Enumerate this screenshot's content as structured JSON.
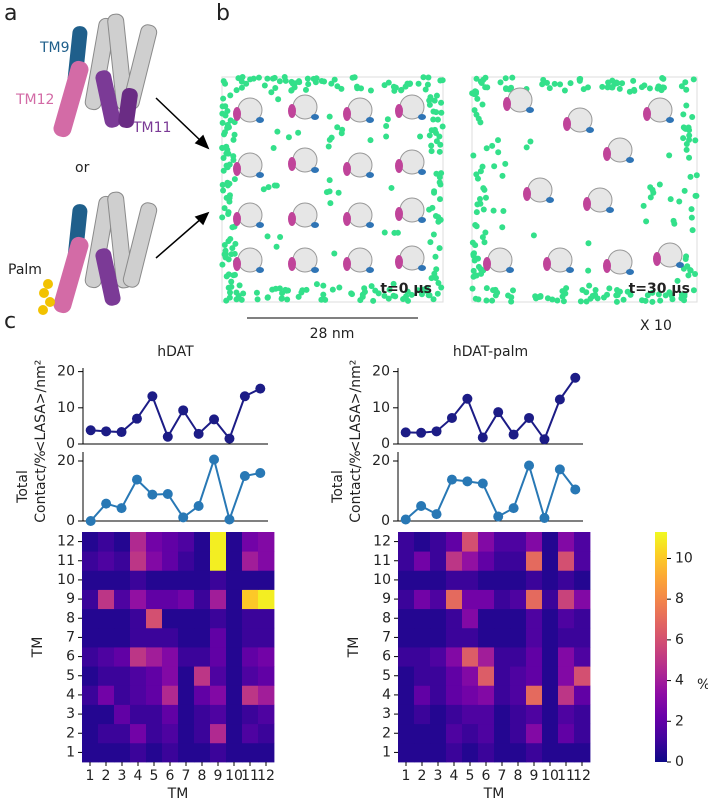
{
  "figure": {
    "panel_labels": [
      "a",
      "b",
      "c"
    ],
    "structure_labels": {
      "tm9": "TM9",
      "tm12": "TM12",
      "tm11": "TM11",
      "or": "or",
      "palm": "Palm"
    },
    "snapshots": {
      "start": "t=0 μs",
      "end": "t=30 μs",
      "scale": "28 nm",
      "magnification": "X 10"
    }
  },
  "chart_data": [
    {
      "type": "line",
      "title": "hDAT",
      "ylabel": "<LASA>/nm²",
      "x": [
        1,
        2,
        3,
        4,
        5,
        6,
        7,
        8,
        9,
        10,
        11,
        12
      ],
      "xlim": [
        0.5,
        12.5
      ],
      "series": [
        {
          "color": "#1c1c86",
          "values": [
            3.8,
            3.5,
            3.3,
            7,
            13.2,
            2,
            9.3,
            2.8,
            6.8,
            1.5,
            13.2,
            15.3
          ]
        }
      ],
      "ylim": [
        0,
        21
      ],
      "yticks": [
        0,
        10,
        20
      ]
    },
    {
      "type": "line",
      "ylabel": [
        "Total",
        "Contact/%"
      ],
      "x": [
        1,
        2,
        3,
        4,
        5,
        6,
        7,
        8,
        9,
        10,
        11,
        12
      ],
      "xlim": [
        0.5,
        12.5
      ],
      "series": [
        {
          "color": "#2878b5",
          "values": [
            0,
            5.8,
            4.3,
            13.8,
            8.8,
            9,
            1.2,
            5,
            20.5,
            0.5,
            15,
            16
          ]
        }
      ],
      "ylim": [
        0,
        23
      ],
      "yticks": [
        0,
        20
      ]
    },
    {
      "type": "heatmap",
      "xlabel": "TM",
      "ylabel": "TM",
      "colormap": "plasma",
      "zlim": [
        0,
        11.3
      ],
      "x": [
        "1",
        "2",
        "3",
        "4",
        "5",
        "6",
        "7",
        "8",
        "9",
        "10",
        "11",
        "12"
      ],
      "y": [
        "1",
        "2",
        "3",
        "4",
        "5",
        "6",
        "7",
        "8",
        "9",
        "10",
        "11",
        "12"
      ],
      "z": [
        [
          0.5,
          0.5,
          0.5,
          1,
          0.5,
          1,
          0.5,
          0.5,
          1,
          0.5,
          0.5,
          0.5
        ],
        [
          0.5,
          1,
          1,
          2.5,
          1,
          1.5,
          0.5,
          1,
          4.5,
          0.5,
          1.5,
          1
        ],
        [
          0.5,
          0.5,
          2,
          1,
          1,
          2,
          0.5,
          1,
          1.5,
          0.5,
          1,
          1.5
        ],
        [
          1,
          2.5,
          1,
          1.5,
          2,
          4.5,
          0.5,
          2,
          3,
          0.5,
          5,
          4
        ],
        [
          0.5,
          1,
          1,
          1.5,
          2,
          3,
          0.5,
          5,
          1.5,
          0.5,
          1.5,
          2
        ],
        [
          1,
          1.5,
          2,
          5,
          4,
          3,
          1,
          1,
          2,
          0.5,
          2,
          2.5
        ],
        [
          0.5,
          0.5,
          0.5,
          1,
          1,
          1,
          0.5,
          0.5,
          2,
          0.5,
          1,
          1
        ],
        [
          0.5,
          0.5,
          0.5,
          1,
          6,
          0.5,
          0.5,
          0.5,
          1,
          0.5,
          1,
          1
        ],
        [
          1,
          5,
          1.5,
          3.5,
          2,
          2,
          2.5,
          1,
          4,
          0.5,
          10,
          11
        ],
        [
          0.5,
          0.5,
          0.5,
          1,
          0.5,
          0.5,
          0.5,
          0.5,
          1,
          0.5,
          0.5,
          0.5
        ],
        [
          1,
          1.5,
          1,
          5,
          3,
          2,
          1,
          0.5,
          11,
          0.5,
          4,
          3
        ],
        [
          0.5,
          1,
          0.5,
          4.5,
          2.5,
          2,
          1.5,
          0.5,
          11,
          0.5,
          2.5,
          3
        ]
      ]
    },
    {
      "type": "line",
      "title": "hDAT-palm",
      "ylabel": "<LASA>/nm²",
      "x": [
        1,
        2,
        3,
        4,
        5,
        6,
        7,
        8,
        9,
        10,
        11,
        12
      ],
      "xlim": [
        0.5,
        12.5
      ],
      "series": [
        {
          "color": "#1c1c86",
          "values": [
            3.2,
            3.1,
            3.5,
            7.2,
            12.5,
            1.8,
            8.8,
            2.6,
            7.2,
            1.3,
            12.3,
            18.3
          ]
        }
      ],
      "ylim": [
        0,
        21
      ],
      "yticks": [
        0,
        10,
        20
      ]
    },
    {
      "type": "line",
      "ylabel": [
        "Total",
        "Contact/%"
      ],
      "x": [
        1,
        2,
        3,
        4,
        5,
        6,
        7,
        8,
        9,
        10,
        11,
        12
      ],
      "xlim": [
        0.5,
        12.5
      ],
      "series": [
        {
          "color": "#2878b5",
          "values": [
            0.5,
            5,
            2.3,
            13.8,
            13.2,
            12.5,
            1.5,
            4.3,
            18.5,
            1,
            17.2,
            10.5
          ]
        }
      ],
      "ylim": [
        0,
        23
      ],
      "yticks": [
        0,
        20
      ]
    },
    {
      "type": "heatmap",
      "xlabel": "TM",
      "ylabel": "TM",
      "colormap": "plasma",
      "zlim": [
        0,
        11.3
      ],
      "zticks": [
        0,
        2,
        4,
        6,
        8,
        10
      ],
      "colorbar_label": "%",
      "x": [
        "1",
        "2",
        "3",
        "4",
        "5",
        "6",
        "7",
        "8",
        "9",
        "10",
        "11",
        "12"
      ],
      "y": [
        "1",
        "2",
        "3",
        "4",
        "5",
        "6",
        "7",
        "8",
        "9",
        "10",
        "11",
        "12"
      ],
      "z": [
        [
          0.5,
          0.5,
          0.5,
          1,
          0.5,
          1,
          0.5,
          0.5,
          1,
          0.5,
          0.5,
          0.5
        ],
        [
          0.5,
          0.5,
          0.5,
          1.5,
          1,
          1.5,
          0.5,
          1,
          3,
          0.5,
          2,
          1
        ],
        [
          0.5,
          1,
          0.5,
          1,
          1.5,
          1.5,
          0.5,
          1,
          1.5,
          0.5,
          1.5,
          1
        ],
        [
          0.5,
          2,
          1,
          2,
          2.5,
          3,
          1,
          1.5,
          7,
          0.5,
          5,
          2
        ],
        [
          0.5,
          1,
          1,
          2,
          3,
          6.5,
          1,
          1.5,
          2,
          0.5,
          3,
          6
        ],
        [
          1,
          1,
          1.5,
          3,
          6.5,
          4,
          1,
          1,
          2,
          0.5,
          3,
          1.5
        ],
        [
          0.5,
          0.5,
          0.5,
          1,
          1,
          0.5,
          0.5,
          0.5,
          1.5,
          0.5,
          1,
          1
        ],
        [
          0.5,
          0.5,
          0.5,
          1,
          3,
          0.5,
          0.5,
          0.5,
          1.5,
          0.5,
          1.5,
          1
        ],
        [
          1,
          2.5,
          1.5,
          7,
          2.5,
          2.5,
          1,
          1.5,
          7,
          1,
          5.5,
          3
        ],
        [
          0.5,
          0.5,
          0.5,
          1,
          1,
          0.5,
          0.5,
          0.5,
          1,
          0.5,
          1,
          0.5
        ],
        [
          1,
          2.5,
          1,
          5,
          3.5,
          2,
          1,
          1,
          7,
          0.5,
          6,
          1.5
        ],
        [
          1,
          0.5,
          1,
          2,
          6,
          3,
          1.5,
          1.5,
          3,
          0.5,
          3,
          1.5
        ]
      ]
    }
  ]
}
